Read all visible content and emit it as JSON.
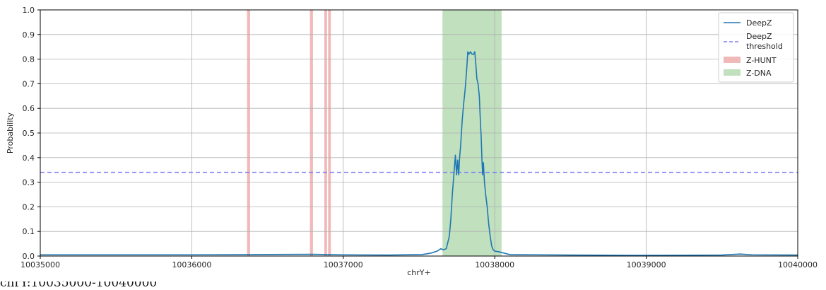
{
  "caption": "chrY:10035000-10040000",
  "chart_data": {
    "type": "line",
    "title": "",
    "xlabel": "chrY+",
    "ylabel": "Probability",
    "xlim": [
      10035000,
      10040000
    ],
    "ylim": [
      0,
      1.0
    ],
    "x_ticks": [
      10035000,
      10036000,
      10037000,
      10038000,
      10039000,
      10040000
    ],
    "y_ticks": [
      0.0,
      0.1,
      0.2,
      0.3,
      0.4,
      0.5,
      0.6,
      0.7,
      0.8,
      0.9,
      1.0
    ],
    "x_tick_labels": [
      "10035000",
      "10036000",
      "10037000",
      "10038000",
      "10039000",
      "10040000"
    ],
    "y_tick_labels": [
      "0.0",
      "0.1",
      "0.2",
      "0.3",
      "0.4",
      "0.5",
      "0.6",
      "0.7",
      "0.8",
      "0.9",
      "1.0"
    ],
    "grid": true,
    "legend_position": "top-right",
    "series": [
      {
        "name": "DeepZ",
        "style": "solid",
        "color": "#1f77b4",
        "points": [
          [
            10035000,
            0.005
          ],
          [
            10036000,
            0.005
          ],
          [
            10036400,
            0.006
          ],
          [
            10036800,
            0.007
          ],
          [
            10037000,
            0.005
          ],
          [
            10037300,
            0.004
          ],
          [
            10037520,
            0.006
          ],
          [
            10037580,
            0.012
          ],
          [
            10037620,
            0.02
          ],
          [
            10037645,
            0.03
          ],
          [
            10037660,
            0.025
          ],
          [
            10037680,
            0.03
          ],
          [
            10037700,
            0.08
          ],
          [
            10037710,
            0.15
          ],
          [
            10037720,
            0.25
          ],
          [
            10037730,
            0.33
          ],
          [
            10037740,
            0.41
          ],
          [
            10037748,
            0.33
          ],
          [
            10037755,
            0.39
          ],
          [
            10037762,
            0.33
          ],
          [
            10037768,
            0.4
          ],
          [
            10037775,
            0.45
          ],
          [
            10037785,
            0.55
          ],
          [
            10037795,
            0.62
          ],
          [
            10037805,
            0.68
          ],
          [
            10037815,
            0.76
          ],
          [
            10037822,
            0.83
          ],
          [
            10037830,
            0.82
          ],
          [
            10037840,
            0.83
          ],
          [
            10037850,
            0.82
          ],
          [
            10037860,
            0.82
          ],
          [
            10037868,
            0.83
          ],
          [
            10037875,
            0.78
          ],
          [
            10037882,
            0.72
          ],
          [
            10037890,
            0.7
          ],
          [
            10037898,
            0.65
          ],
          [
            10037905,
            0.55
          ],
          [
            10037910,
            0.49
          ],
          [
            10037915,
            0.4
          ],
          [
            10037920,
            0.33
          ],
          [
            10037925,
            0.38
          ],
          [
            10037932,
            0.3
          ],
          [
            10037940,
            0.25
          ],
          [
            10037950,
            0.2
          ],
          [
            10037960,
            0.13
          ],
          [
            10037970,
            0.08
          ],
          [
            10037980,
            0.04
          ],
          [
            10037990,
            0.025
          ],
          [
            10038000,
            0.02
          ],
          [
            10038030,
            0.017
          ],
          [
            10038060,
            0.012
          ],
          [
            10038100,
            0.006
          ],
          [
            10038500,
            0.004
          ],
          [
            10039000,
            0.003
          ],
          [
            10039500,
            0.004
          ],
          [
            10039620,
            0.008
          ],
          [
            10039700,
            0.005
          ],
          [
            10040000,
            0.004
          ]
        ]
      },
      {
        "name": "DeepZ threshold",
        "style": "dashed",
        "color": "#7b7bf5",
        "y": 0.34
      }
    ],
    "spans": [
      {
        "name": "Z-HUNT",
        "color": "#e88f8f",
        "ranges": [
          [
            10036365,
            10036385
          ],
          [
            10036780,
            10036800
          ],
          [
            10036875,
            10036893
          ],
          [
            10036900,
            10036918
          ]
        ]
      },
      {
        "name": "Z-DNA",
        "color": "#93c98f",
        "ranges": [
          [
            10037655,
            10038045
          ]
        ]
      }
    ],
    "legend": {
      "deepz_label": "DeepZ",
      "threshold_label_line1": "DeepZ",
      "threshold_label_line2": "threshold",
      "zhunt_label": "Z-HUNT",
      "zdna_label": "Z-DNA"
    }
  }
}
